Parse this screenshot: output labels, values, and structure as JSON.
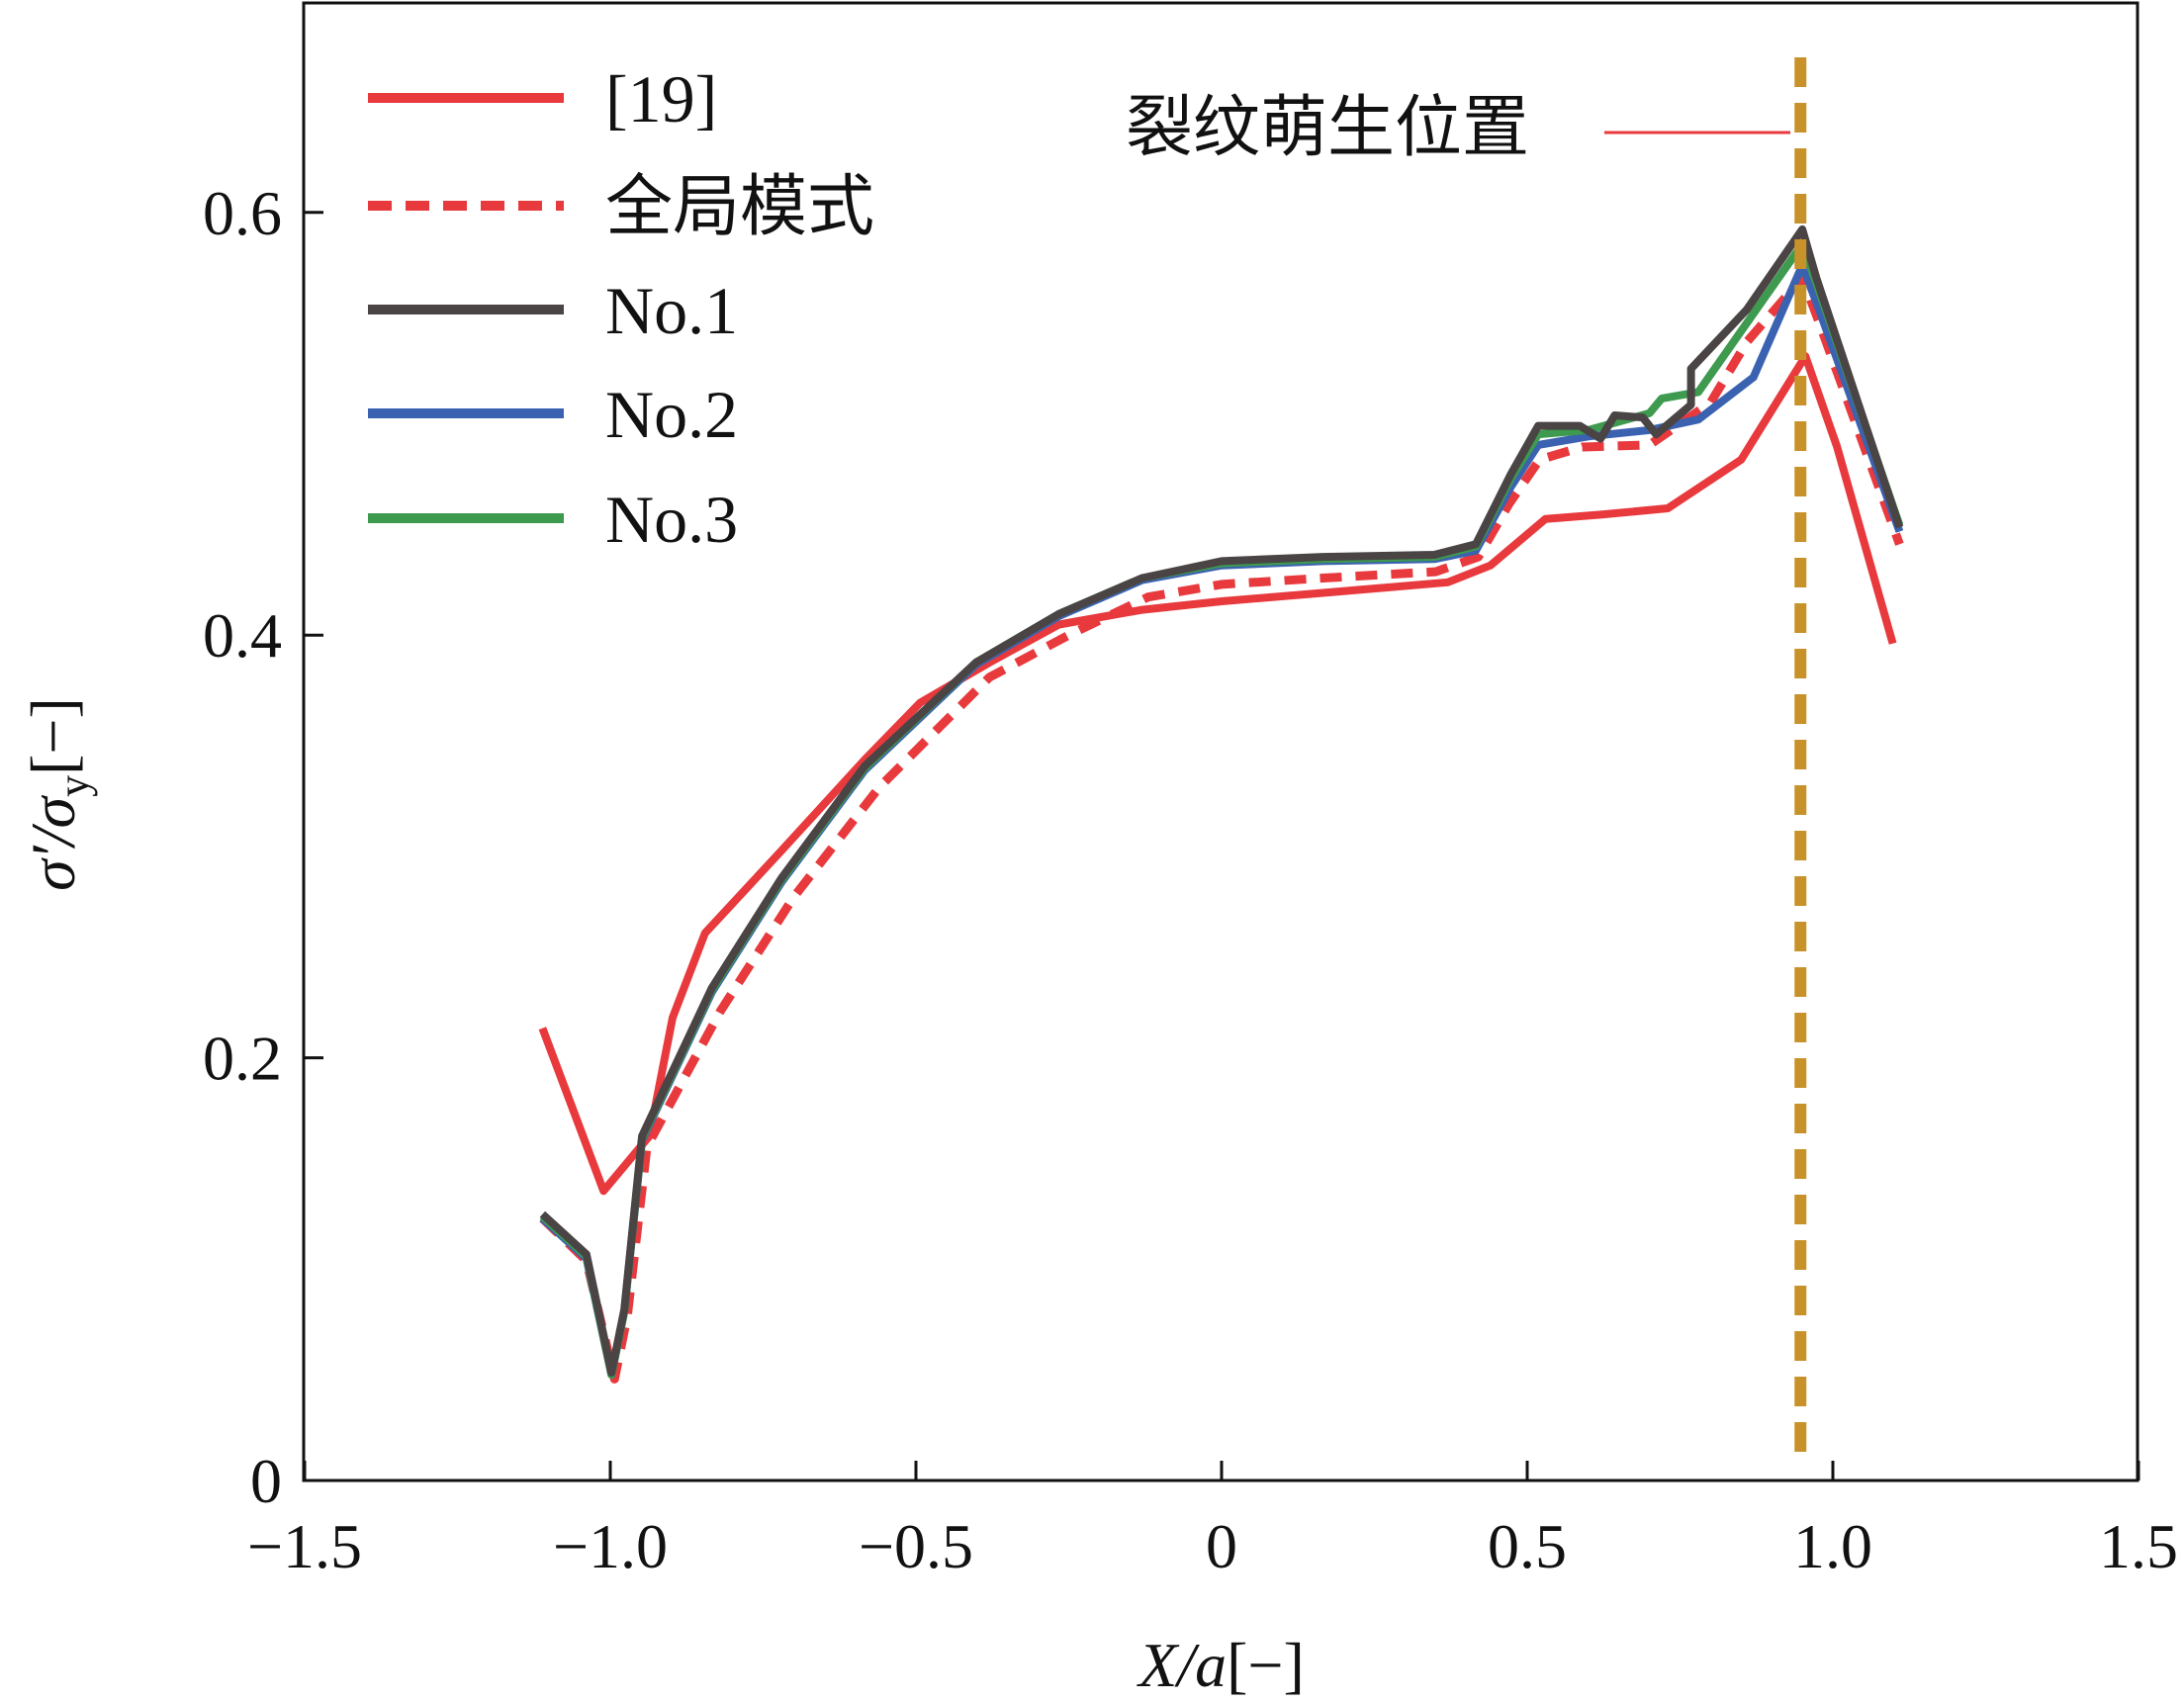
{
  "chart_data": {
    "type": "line",
    "xlabel_main": "X/a",
    "xlabel_unit": "[−]",
    "ylabel_sigma": "σ′/σ",
    "ylabel_sub": "y",
    "ylabel_unit": "[−]",
    "xlim": [
      -1.5,
      1.5
    ],
    "ylim": [
      0,
      0.6
    ],
    "xticks": [
      -1.5,
      -1.0,
      -0.5,
      0,
      0.5,
      1.0,
      1.5
    ],
    "xtick_labels": [
      "−1.5",
      "−1.0",
      "−0.5",
      "0",
      "0.5",
      "1.0",
      "1.5"
    ],
    "yticks": [
      0,
      0.2,
      0.4,
      0.6
    ],
    "ytick_labels": [
      "0",
      "0.2",
      "0.4",
      "0.6"
    ],
    "grid": false,
    "legend_position": "top-left",
    "annotation": {
      "text": "裂纹萌生位置",
      "x": 0.947,
      "color": "#c8922a",
      "leader_color": "#e8393d"
    },
    "series": [
      {
        "name": "[19]",
        "color": "#e8393d",
        "dash": false,
        "x": [
          -1.111,
          -1.011,
          -0.936,
          -0.898,
          -0.845,
          -0.72,
          -0.584,
          -0.493,
          -0.38,
          -0.266,
          -0.13,
          0,
          0.166,
          0.37,
          0.44,
          0.53,
          0.62,
          0.73,
          0.85,
          0.955,
          1.007,
          1.098
        ],
        "y": [
          0.214,
          0.137,
          0.163,
          0.219,
          0.259,
          0.298,
          0.341,
          0.368,
          0.387,
          0.405,
          0.412,
          0.416,
          0.42,
          0.425,
          0.433,
          0.455,
          0.457,
          0.46,
          0.483,
          0.532,
          0.489,
          0.396
        ]
      },
      {
        "name": "全局模式",
        "color": "#e8393d",
        "dash": true,
        "x": [
          -1.111,
          -1.039,
          -0.993,
          -0.972,
          -0.94,
          -0.82,
          -0.7,
          -0.56,
          -0.38,
          -0.25,
          -0.12,
          0,
          0.166,
          0.35,
          0.42,
          0.47,
          0.52,
          0.59,
          0.7,
          0.8,
          0.86,
          0.95,
          0.975,
          1.109
        ],
        "y": [
          0.124,
          0.104,
          0.048,
          0.078,
          0.158,
          0.222,
          0.276,
          0.328,
          0.38,
          0.4,
          0.418,
          0.424,
          0.427,
          0.43,
          0.437,
          0.462,
          0.483,
          0.489,
          0.49,
          0.51,
          0.539,
          0.569,
          0.55,
          0.443
        ]
      },
      {
        "name": "No.1",
        "color": "#4a4444",
        "dash": false,
        "x": [
          -1.111,
          -1.039,
          -0.998,
          -0.977,
          -0.948,
          -0.834,
          -0.72,
          -0.584,
          -0.402,
          -0.266,
          -0.13,
          0,
          0.166,
          0.348,
          0.416,
          0.473,
          0.518,
          0.586,
          0.62,
          0.643,
          0.689,
          0.711,
          0.768,
          0.768,
          0.859,
          0.95,
          0.973,
          1.109
        ],
        "y": [
          0.126,
          0.107,
          0.051,
          0.081,
          0.163,
          0.233,
          0.285,
          0.338,
          0.387,
          0.41,
          0.427,
          0.435,
          0.437,
          0.438,
          0.443,
          0.476,
          0.499,
          0.499,
          0.493,
          0.504,
          0.503,
          0.495,
          0.509,
          0.526,
          0.554,
          0.592,
          0.569,
          0.451
        ]
      },
      {
        "name": "No.2",
        "color": "#3b62b0",
        "dash": false,
        "x": [
          -1.111,
          -1.039,
          -0.998,
          -0.977,
          -0.948,
          -0.834,
          -0.72,
          -0.584,
          -0.402,
          -0.266,
          -0.13,
          0,
          0.166,
          0.348,
          0.416,
          0.473,
          0.518,
          0.6,
          0.7,
          0.78,
          0.87,
          0.95,
          0.975,
          1.109
        ],
        "y": [
          0.124,
          0.105,
          0.05,
          0.08,
          0.161,
          0.231,
          0.283,
          0.336,
          0.386,
          0.409,
          0.426,
          0.433,
          0.435,
          0.436,
          0.44,
          0.47,
          0.49,
          0.494,
          0.497,
          0.502,
          0.522,
          0.575,
          0.556,
          0.449
        ]
      },
      {
        "name": "No.3",
        "color": "#3d9a4f",
        "dash": false,
        "x": [
          -1.111,
          -1.039,
          -0.998,
          -0.977,
          -0.948,
          -0.834,
          -0.72,
          -0.584,
          -0.402,
          -0.266,
          -0.13,
          0,
          0.166,
          0.348,
          0.416,
          0.473,
          0.518,
          0.6,
          0.7,
          0.72,
          0.78,
          0.86,
          0.95,
          0.975,
          1.109
        ],
        "y": [
          0.125,
          0.106,
          0.05,
          0.08,
          0.162,
          0.232,
          0.284,
          0.337,
          0.387,
          0.41,
          0.427,
          0.434,
          0.436,
          0.437,
          0.442,
          0.474,
          0.495,
          0.497,
          0.505,
          0.512,
          0.515,
          0.548,
          0.585,
          0.565,
          0.452
        ]
      }
    ]
  }
}
